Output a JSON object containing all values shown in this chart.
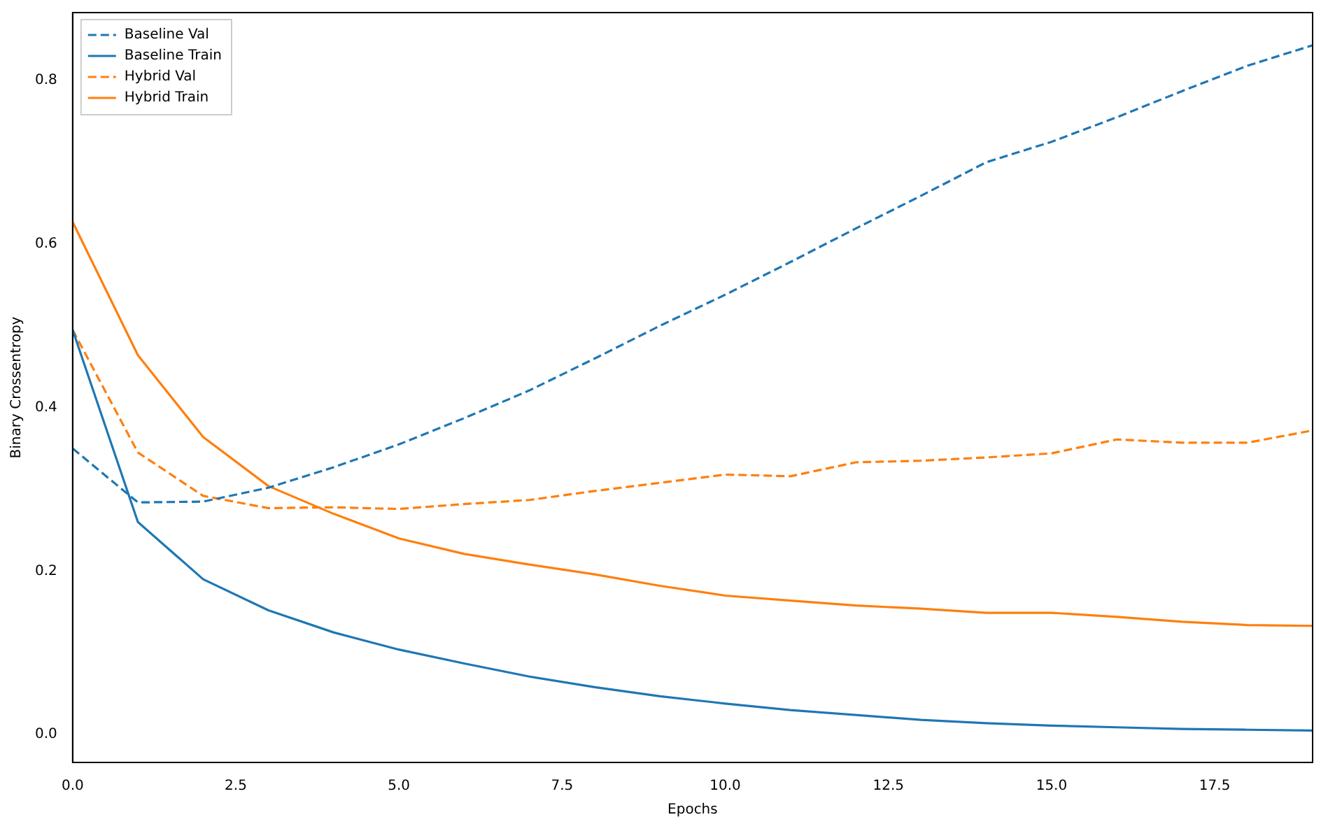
{
  "chart_data": {
    "type": "line",
    "xlabel": "Epochs",
    "ylabel": "Binary Crossentropy",
    "x": [
      0,
      1,
      2,
      3,
      4,
      5,
      6,
      7,
      8,
      9,
      10,
      11,
      12,
      13,
      14,
      15,
      16,
      17,
      18,
      19
    ],
    "xlim": [
      0,
      19
    ],
    "xticks": [
      {
        "value": 0,
        "label": "0.0"
      },
      {
        "value": 2.5,
        "label": "2.5"
      },
      {
        "value": 5,
        "label": "5.0"
      },
      {
        "value": 7.5,
        "label": "7.5"
      },
      {
        "value": 10,
        "label": "10.0"
      },
      {
        "value": 12.5,
        "label": "12.5"
      },
      {
        "value": 15,
        "label": "15.0"
      },
      {
        "value": 17.5,
        "label": "17.5"
      }
    ],
    "ylim": [
      -0.034,
      0.883
    ],
    "yticks": [
      {
        "value": 0,
        "label": "0.0"
      },
      {
        "value": 0.2,
        "label": "0.2"
      },
      {
        "value": 0.4,
        "label": "0.4"
      },
      {
        "value": 0.6,
        "label": "0.6"
      },
      {
        "value": 0.8,
        "label": "0.8"
      }
    ],
    "grid": false,
    "legend": "top left",
    "marker": "none",
    "series": [
      {
        "name": "Baseline Val",
        "color": "#1f77b4",
        "line_style": "dashed",
        "values": [
          0.35,
          0.284,
          0.285,
          0.302,
          0.327,
          0.355,
          0.387,
          0.421,
          0.46,
          0.5,
          0.538,
          0.578,
          0.619,
          0.659,
          0.7,
          0.725,
          0.755,
          0.787,
          0.818,
          0.843
        ]
      },
      {
        "name": "Baseline Train",
        "color": "#1f77b4",
        "line_style": "solid",
        "values": [
          0.495,
          0.26,
          0.19,
          0.152,
          0.125,
          0.104,
          0.087,
          0.071,
          0.058,
          0.047,
          0.038,
          0.03,
          0.024,
          0.018,
          0.014,
          0.011,
          0.009,
          0.007,
          0.006,
          0.005
        ]
      },
      {
        "name": "Hybrid Val",
        "color": "#ff7f0e",
        "line_style": "dashed",
        "values": [
          0.495,
          0.345,
          0.292,
          0.277,
          0.278,
          0.276,
          0.282,
          0.287,
          0.298,
          0.308,
          0.318,
          0.316,
          0.333,
          0.335,
          0.339,
          0.344,
          0.361,
          0.357,
          0.357,
          0.372
        ]
      },
      {
        "name": "Hybrid Train",
        "color": "#ff7f0e",
        "line_style": "solid",
        "values": [
          0.627,
          0.464,
          0.364,
          0.304,
          0.27,
          0.24,
          0.221,
          0.208,
          0.196,
          0.182,
          0.17,
          0.164,
          0.158,
          0.154,
          0.149,
          0.149,
          0.144,
          0.138,
          0.134,
          0.133
        ]
      }
    ]
  }
}
